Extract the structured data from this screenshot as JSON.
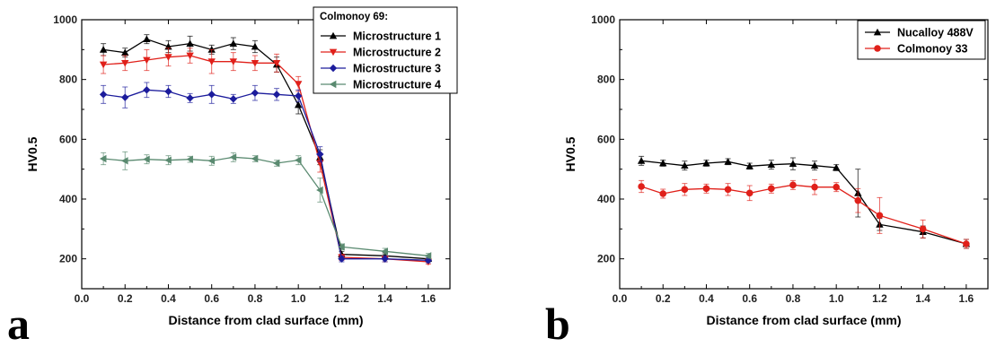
{
  "chart_data": [
    {
      "type": "line",
      "panel_label": "a",
      "xlabel": "Distance from clad surface (mm)",
      "ylabel": "HV0.5",
      "xlim": [
        0.0,
        1.7
      ],
      "ylim": [
        100,
        1000
      ],
      "xticks": [
        "0.0",
        "0.2",
        "0.4",
        "0.6",
        "0.8",
        "1.0",
        "1.2",
        "1.4",
        "1.6"
      ],
      "yticks": [
        "200",
        "400",
        "600",
        "800",
        "1000"
      ],
      "legend_title": "Colmonoy 69:",
      "legend_position": "top-right",
      "x": [
        0.1,
        0.2,
        0.3,
        0.4,
        0.5,
        0.6,
        0.7,
        0.8,
        0.9,
        1.0,
        1.1,
        1.2,
        1.4,
        1.6
      ],
      "series": [
        {
          "name": "Microstructure 1",
          "color": "#000000",
          "marker": "triangle-up",
          "values": [
            900,
            890,
            935,
            910,
            920,
            900,
            920,
            910,
            850,
            715,
            540,
            215,
            210,
            200
          ],
          "errors": [
            20,
            15,
            15,
            20,
            25,
            15,
            20,
            20,
            25,
            30,
            25,
            10,
            10,
            8
          ]
        },
        {
          "name": "Microstructure 2",
          "color": "#e0201a",
          "marker": "triangle-down",
          "values": [
            850,
            855,
            865,
            875,
            880,
            860,
            860,
            855,
            855,
            785,
            520,
            205,
            200,
            190
          ],
          "errors": [
            30,
            25,
            35,
            30,
            25,
            40,
            30,
            25,
            30,
            25,
            30,
            10,
            10,
            8
          ]
        },
        {
          "name": "Microstructure 3",
          "color": "#1c1c9c",
          "marker": "diamond",
          "values": [
            750,
            740,
            765,
            760,
            738,
            750,
            735,
            755,
            750,
            745,
            550,
            200,
            200,
            195
          ],
          "errors": [
            30,
            35,
            25,
            20,
            15,
            30,
            15,
            25,
            20,
            20,
            25,
            10,
            10,
            8
          ]
        },
        {
          "name": "Microstructure 4",
          "color": "#5a8a70",
          "marker": "triangle-left",
          "values": [
            535,
            528,
            533,
            530,
            533,
            528,
            540,
            535,
            520,
            530,
            430,
            240,
            225,
            210
          ],
          "errors": [
            20,
            30,
            15,
            15,
            10,
            15,
            15,
            10,
            10,
            15,
            40,
            10,
            10,
            8
          ]
        }
      ]
    },
    {
      "type": "line",
      "panel_label": "b",
      "xlabel": "Distance from clad surface (mm)",
      "ylabel": "HV0.5",
      "xlim": [
        0.0,
        1.7
      ],
      "ylim": [
        100,
        1000
      ],
      "xticks": [
        "0.0",
        "0.2",
        "0.4",
        "0.6",
        "0.8",
        "1.0",
        "1.2",
        "1.4",
        "1.6"
      ],
      "yticks": [
        "200",
        "400",
        "600",
        "800",
        "1000"
      ],
      "legend_position": "top-right",
      "series": [
        {
          "name": "Nucalloy 488V",
          "color": "#000000",
          "marker": "triangle-up",
          "x": [
            0.1,
            0.2,
            0.3,
            0.4,
            0.5,
            0.6,
            0.7,
            0.8,
            0.9,
            1.0,
            1.1,
            1.2,
            1.4,
            1.6
          ],
          "values": [
            528,
            520,
            512,
            520,
            525,
            510,
            515,
            518,
            512,
            505,
            420,
            315,
            290,
            250
          ],
          "errors": [
            15,
            10,
            15,
            10,
            10,
            10,
            15,
            20,
            15,
            10,
            80,
            20,
            20,
            15
          ]
        },
        {
          "name": "Colmonoy 33",
          "color": "#e0201a",
          "marker": "circle",
          "x": [
            0.1,
            0.2,
            0.3,
            0.4,
            0.5,
            0.6,
            0.7,
            0.8,
            0.9,
            1.0,
            1.1,
            1.2,
            1.4,
            1.6
          ],
          "values": [
            442,
            418,
            432,
            435,
            432,
            420,
            435,
            447,
            440,
            440,
            395,
            345,
            300,
            250
          ],
          "errors": [
            20,
            15,
            20,
            15,
            20,
            25,
            15,
            15,
            25,
            15,
            40,
            60,
            30,
            15
          ]
        }
      ]
    }
  ]
}
